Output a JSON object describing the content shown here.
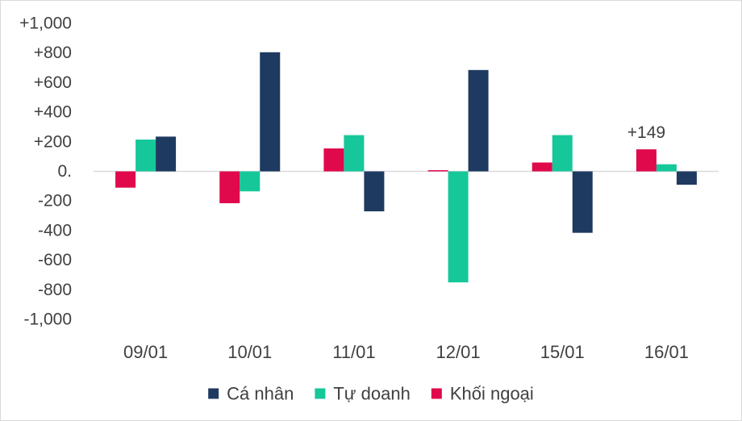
{
  "chart_data": {
    "type": "bar",
    "title": "",
    "xlabel": "",
    "ylabel": "",
    "ylim": [
      -1000,
      1000
    ],
    "yticks": [
      1000,
      800,
      600,
      400,
      200,
      0,
      -200,
      -400,
      -600,
      -800,
      -1000
    ],
    "ytick_labels": [
      "+1,000",
      "+800",
      "+600",
      "+400",
      "+200",
      "0.",
      "-200",
      "-400",
      "-600",
      "-800",
      "-1,000"
    ],
    "categories": [
      "09/01",
      "10/01",
      "11/01",
      "12/01",
      "15/01",
      "16/01"
    ],
    "series": [
      {
        "name": "Khối ngoại",
        "color": "#E0094B",
        "values": [
          -110,
          -215,
          155,
          8,
          60,
          149
        ]
      },
      {
        "name": "Tự doanh",
        "color": "#16C79A",
        "values": [
          215,
          -135,
          245,
          -750,
          245,
          48
        ]
      },
      {
        "name": "Cá nhân",
        "color": "#1F3A60",
        "values": [
          235,
          805,
          -270,
          685,
          -415,
          -90
        ]
      }
    ],
    "legend_order": [
      2,
      1,
      0
    ],
    "legend_position": "bottom-center",
    "annotations": [
      {
        "text": "+149",
        "category": "16/01",
        "series": "Khối ngoại"
      }
    ],
    "grid": false
  }
}
